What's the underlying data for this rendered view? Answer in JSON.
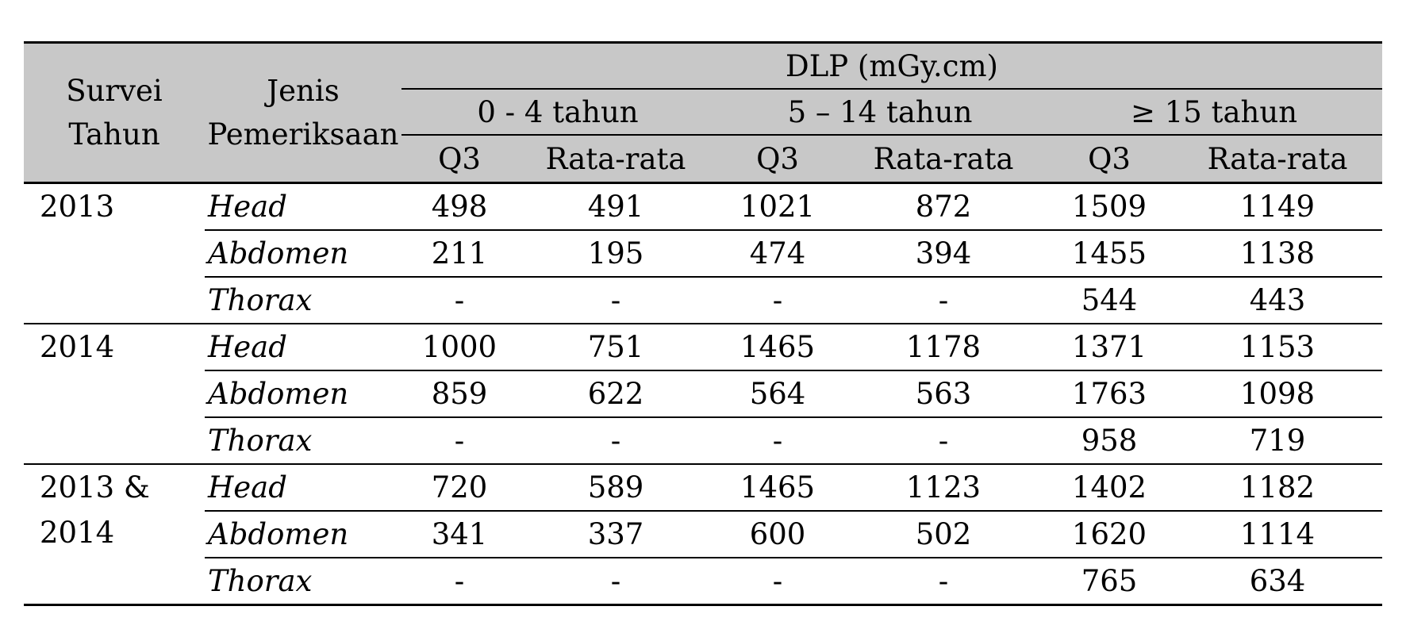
{
  "header": {
    "survey_year": [
      "Survei",
      "Tahun"
    ],
    "exam_type": [
      "Jenis",
      "Pemeriksaan"
    ],
    "dlp": "DLP (mGy.cm)",
    "age_groups": [
      "0 -  4 tahun",
      "5 – 14 tahun",
      "≥ 15 tahun"
    ],
    "stats": [
      "Q3",
      "Rata-rata",
      "Q3",
      "Rata-rata",
      "Q3",
      "Rata-rata"
    ]
  },
  "groups": [
    {
      "year": [
        "2013"
      ],
      "rows": [
        {
          "exam": "Head",
          "values": [
            "498",
            "491",
            "1021",
            "872",
            "1509",
            "1149"
          ]
        },
        {
          "exam": "Abdomen",
          "values": [
            "211",
            "195",
            "474",
            "394",
            "1455",
            "1138"
          ]
        },
        {
          "exam": "Thorax",
          "values": [
            "-",
            "-",
            "-",
            "-",
            "544",
            "443"
          ]
        }
      ]
    },
    {
      "year": [
        "2014"
      ],
      "rows": [
        {
          "exam": "Head",
          "values": [
            "1000",
            "751",
            "1465",
            "1178",
            "1371",
            "1153"
          ]
        },
        {
          "exam": "Abdomen",
          "values": [
            "859",
            "622",
            "564",
            "563",
            "1763",
            "1098"
          ]
        },
        {
          "exam": "Thorax",
          "values": [
            "-",
            "-",
            "-",
            "-",
            "958",
            "719"
          ]
        }
      ]
    },
    {
      "year": [
        "2013 &",
        "2014"
      ],
      "rows": [
        {
          "exam": "Head",
          "values": [
            "720",
            "589",
            "1465",
            "1123",
            "1402",
            "1182"
          ]
        },
        {
          "exam": "Abdomen",
          "values": [
            "341",
            "337",
            "600",
            "502",
            "1620",
            "1114"
          ]
        },
        {
          "exam": "Thorax",
          "values": [
            "-",
            "-",
            "-",
            "-",
            "765",
            "634"
          ]
        }
      ]
    }
  ]
}
